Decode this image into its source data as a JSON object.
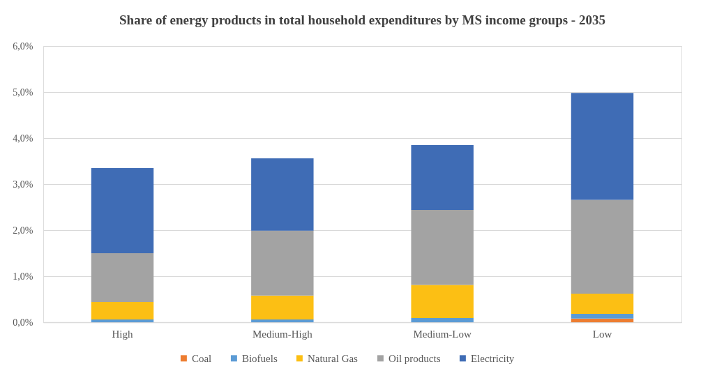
{
  "chart_data": {
    "type": "bar",
    "title": "Share of energy products in total household expenditures by MS income groups - 2035",
    "categories": [
      "High",
      "Medium-High",
      "Medium-Low",
      "Low"
    ],
    "series": [
      {
        "name": "Coal",
        "color": "#ed7d31",
        "values": [
          0,
          0,
          0,
          0.08
        ]
      },
      {
        "name": "Biofuels",
        "color": "#5b9bd5",
        "values": [
          0.06,
          0.06,
          0.09,
          0.1
        ]
      },
      {
        "name": "Natural Gas",
        "color": "#fcbf14",
        "values": [
          0.38,
          0.52,
          0.72,
          0.44
        ]
      },
      {
        "name": "Oil products",
        "color": "#a3a3a3",
        "values": [
          1.06,
          1.41,
          1.63,
          2.04
        ]
      },
      {
        "name": "Electricity",
        "color": "#3f6cb5",
        "values": [
          1.85,
          1.57,
          1.41,
          2.32
        ]
      }
    ],
    "stacked": true,
    "ylim": [
      0,
      6
    ],
    "yticks": [
      {
        "value": 0,
        "label": "0,0%"
      },
      {
        "value": 1,
        "label": "1,0%"
      },
      {
        "value": 2,
        "label": "2,0%"
      },
      {
        "value": 3,
        "label": "3,0%"
      },
      {
        "value": 4,
        "label": "4,0%"
      },
      {
        "value": 5,
        "label": "5,0%"
      },
      {
        "value": 6,
        "label": "6,0%"
      }
    ],
    "grid": "y",
    "legend": "bottom"
  }
}
